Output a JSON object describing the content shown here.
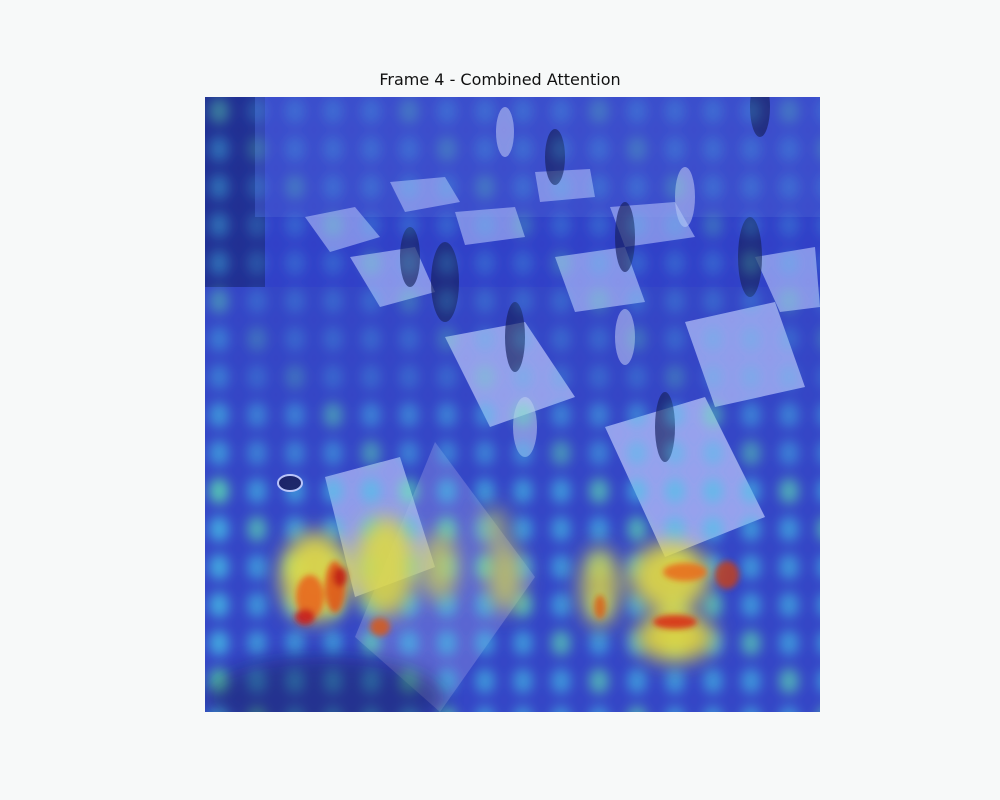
{
  "figure": {
    "title": "Frame 4 - Combined Attention"
  },
  "overlay": {
    "colormap": "jet",
    "base_tint": "#2a3fd0"
  }
}
